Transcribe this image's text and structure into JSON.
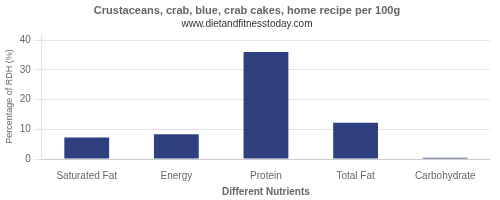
{
  "chart_data": {
    "type": "bar",
    "title": "Crustaceans, crab, blue, crab cakes, home recipe per 100g",
    "subtitle": "www.dietandfitnesstoday.com",
    "xlabel": "Different Nutrients",
    "ylabel": "Percentage of RDH (%)",
    "categories": [
      "Saturated Fat",
      "Energy",
      "Protein",
      "Total Fat",
      "Carbohydrate"
    ],
    "values": [
      7.2,
      8.3,
      36.0,
      12.2,
      0.4
    ],
    "color": "#2e4080",
    "ylim": [
      0,
      42
    ],
    "yticks": [
      0,
      10,
      20,
      30,
      40
    ],
    "grid": true
  }
}
